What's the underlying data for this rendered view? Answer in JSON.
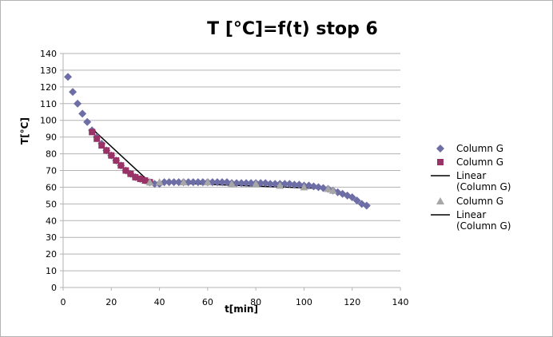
{
  "chart_data": {
    "type": "scatter",
    "title": "T [°C]=f(t) stop 6",
    "xlabel": "t[min]",
    "ylabel": "T[°C]",
    "xlim": [
      0,
      140
    ],
    "ylim": [
      0,
      140
    ],
    "xticks": [
      0,
      20,
      40,
      60,
      80,
      100,
      120,
      140
    ],
    "yticks": [
      0,
      10,
      20,
      30,
      40,
      50,
      60,
      70,
      80,
      90,
      100,
      110,
      120,
      130,
      140
    ],
    "grid": "horizontal",
    "legend_position": "right",
    "series": [
      {
        "name": "Column G",
        "marker": "diamond",
        "color": "#6e6ea6",
        "x": [
          2,
          4,
          6,
          8,
          10,
          12,
          14,
          16,
          18,
          20,
          22,
          24,
          26,
          28,
          30,
          32,
          34,
          36,
          38,
          40,
          42,
          44,
          46,
          48,
          50,
          52,
          54,
          56,
          58,
          60,
          62,
          64,
          66,
          68,
          70,
          72,
          74,
          76,
          78,
          80,
          82,
          84,
          86,
          88,
          90,
          92,
          94,
          96,
          98,
          100,
          102,
          104,
          106,
          108,
          110,
          112,
          114,
          116,
          118,
          120,
          122,
          124,
          126
        ],
        "y": [
          126,
          117,
          110,
          104,
          99,
          94,
          90,
          86,
          82,
          79,
          76,
          73,
          70,
          68,
          66,
          65,
          64,
          63,
          62,
          62,
          63,
          63,
          63,
          63,
          63,
          63,
          63,
          63,
          63,
          63,
          63,
          63,
          63,
          63,
          62.5,
          62.5,
          62.5,
          62.5,
          62.5,
          62.5,
          62.5,
          62.5,
          62,
          62,
          62,
          62,
          62,
          61.5,
          61.5,
          61,
          61,
          60.5,
          60,
          59.5,
          59,
          58,
          57,
          56,
          55,
          54,
          52,
          50,
          49
        ]
      },
      {
        "name": "Column G",
        "marker": "square",
        "color": "#993366",
        "x": [
          12,
          14,
          16,
          18,
          20,
          22,
          24,
          26,
          28,
          30,
          32,
          34,
          36
        ],
        "y": [
          93,
          89,
          85,
          82,
          79,
          76,
          73,
          70,
          68,
          66,
          65,
          64,
          63
        ]
      },
      {
        "name": "Linear (Column G)",
        "type": "line",
        "color": "#000000",
        "x": [
          12,
          36
        ],
        "y": [
          95,
          63
        ]
      },
      {
        "name": "Column G",
        "marker": "triangle",
        "color": "#a6a6a6",
        "x": [
          36,
          40,
          50,
          60,
          70,
          80,
          90,
          100,
          110,
          112
        ],
        "y": [
          63,
          63,
          63,
          63,
          62,
          62,
          61,
          60,
          59,
          58
        ]
      },
      {
        "name": "Linear (Column G)",
        "type": "line",
        "color": "#000000",
        "x": [
          36,
          112
        ],
        "y": [
          63,
          59
        ]
      }
    ]
  }
}
